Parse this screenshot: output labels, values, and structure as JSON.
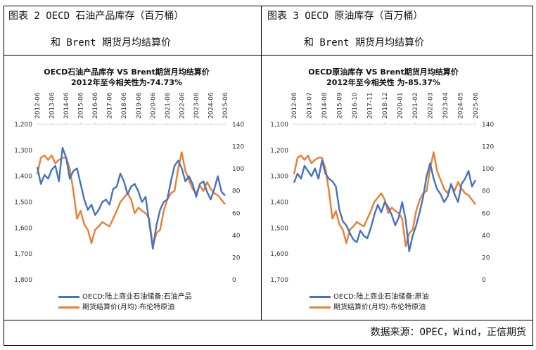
{
  "panels": [
    {
      "caption_line1": "图表 2 OECD 石油产品库存（百万桶）",
      "caption_line2": "和 Brent 期货月均结算价"
    },
    {
      "caption_line1": "图表 3 OECD 原油库存（百万桶）",
      "caption_line2": "和 Brent 期货月均结算价"
    }
  ],
  "source": "数据来源：OPEC，Wind，正信期货",
  "colors": {
    "blue": "#4472C4",
    "orange": "#ED7D31",
    "axis": "#d9d9d9"
  },
  "chart_data": [
    {
      "type": "line",
      "title": "OECD石油产品库存 VS Brent期货月均结算价",
      "subtitle": "2012年至今相关性为-74.73%",
      "x_ticks": [
        "2012-06",
        "2013-06",
        "2014-06",
        "2015-06",
        "2016-06",
        "2017-06",
        "2018-06",
        "2019-06",
        "2020-06",
        "2021-06",
        "2022-06",
        "2023-06",
        "2024-06",
        "2025-06"
      ],
      "x_sampling": "quarterly from 2012-06 to 2025-06",
      "left_axis": {
        "ticks": [
          "1,200",
          "1,300",
          "1,400",
          "1,500",
          "1,600",
          "1,700",
          "1,800"
        ],
        "range": [
          1200,
          1800
        ],
        "reversed": true
      },
      "right_axis": {
        "ticks": [
          "140",
          "120",
          "100",
          "80",
          "60",
          "40",
          "20",
          "0"
        ],
        "range": [
          0,
          140
        ]
      },
      "legend_placement": "bottom",
      "series": [
        {
          "name": "OECD:陆上商业石油储备:石油产品",
          "axis": "left",
          "color": "#4472C4",
          "values": [
            1365,
            1430,
            1395,
            1410,
            1375,
            1360,
            1420,
            1290,
            1330,
            1410,
            1380,
            1370,
            1430,
            1490,
            1530,
            1510,
            1550,
            1530,
            1500,
            1490,
            1510,
            1450,
            1440,
            1390,
            1420,
            1470,
            1440,
            1430,
            1460,
            1500,
            1480,
            1580,
            1680,
            1590,
            1530,
            1500,
            1490,
            1420,
            1360,
            1340,
            1370,
            1420,
            1400,
            1430,
            1480,
            1430,
            1420,
            1460,
            1490,
            1450,
            1400,
            1460,
            1475
          ]
        },
        {
          "name": "期货结算价(月均):布伦特原油",
          "axis": "right",
          "color": "#ED7D31",
          "values": [
            95,
            110,
            112,
            108,
            112,
            105,
            108,
            110,
            110,
            100,
            80,
            55,
            62,
            50,
            45,
            33,
            45,
            48,
            52,
            50,
            48,
            55,
            62,
            70,
            74,
            78,
            72,
            60,
            65,
            62,
            60,
            55,
            30,
            42,
            45,
            62,
            72,
            78,
            80,
            100,
            115,
            98,
            90,
            82,
            78,
            85,
            80,
            88,
            82,
            78,
            76,
            72,
            68
          ]
        }
      ]
    },
    {
      "type": "line",
      "title": "OECD原油库存 VS Brent期货月均结算价",
      "subtitle": "2012年至今相关性 为-85.37%",
      "x_ticks": [
        "2012-06",
        "2013-07",
        "2014-08",
        "2015-09",
        "2016-10",
        "2017-11",
        "2018-12",
        "2020-01",
        "2021-02",
        "2022-03",
        "2023-04",
        "2024-05",
        "2025-06"
      ],
      "x_sampling": "quarterly from 2012-06 to 2025-06",
      "left_axis": {
        "ticks": [
          "1,100",
          "1,200",
          "1,300",
          "1,400",
          "1,500",
          "1,600",
          "1,700"
        ],
        "range": [
          1100,
          1700
        ],
        "reversed": true
      },
      "right_axis": {
        "ticks": [
          "140",
          "120",
          "100",
          "80",
          "60",
          "40",
          "20",
          "0"
        ],
        "range": [
          0,
          140
        ]
      },
      "legend_placement": "bottom",
      "series": [
        {
          "name": "OECD:陆上商业石油储备:原油",
          "axis": "left",
          "color": "#4472C4",
          "values": [
            1325,
            1290,
            1310,
            1260,
            1280,
            1300,
            1270,
            1310,
            1240,
            1290,
            1310,
            1320,
            1340,
            1430,
            1475,
            1490,
            1520,
            1545,
            1555,
            1510,
            1530,
            1540,
            1500,
            1450,
            1410,
            1440,
            1400,
            1420,
            1450,
            1490,
            1460,
            1400,
            1470,
            1590,
            1530,
            1490,
            1440,
            1380,
            1300,
            1250,
            1310,
            1350,
            1370,
            1400,
            1380,
            1330,
            1370,
            1400,
            1330,
            1310,
            1280,
            1340,
            1315
          ]
        },
        {
          "name": "期货结算价(月均):布伦特原油",
          "axis": "right",
          "color": "#ED7D31",
          "values": [
            95,
            110,
            112,
            108,
            112,
            105,
            108,
            110,
            110,
            100,
            80,
            55,
            62,
            50,
            45,
            33,
            45,
            48,
            52,
            50,
            48,
            55,
            62,
            70,
            74,
            78,
            72,
            60,
            65,
            62,
            60,
            55,
            30,
            42,
            45,
            62,
            72,
            78,
            80,
            100,
            115,
            98,
            90,
            82,
            78,
            85,
            80,
            88,
            82,
            78,
            76,
            72,
            68
          ]
        }
      ]
    }
  ]
}
